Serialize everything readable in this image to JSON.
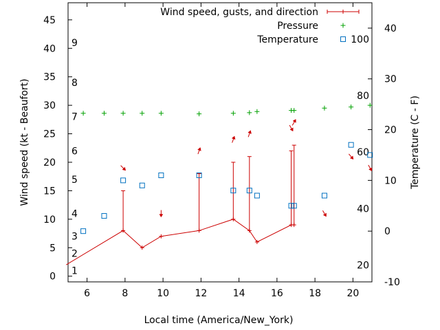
{
  "chart_data": {
    "type": "line",
    "title": "",
    "xlabel": "Local time (America/New_York)",
    "ylabel_left": "Wind speed (kt - Beaufort)",
    "ylabel_right": "Temperature (C - F)",
    "xlim": [
      5,
      21
    ],
    "ylim_left": [
      -1,
      48
    ],
    "ylim_right": [
      -10,
      45
    ],
    "x_ticks": [
      6,
      8,
      10,
      12,
      14,
      16,
      18,
      20
    ],
    "y_left_ticks": [
      0,
      5,
      10,
      15,
      20,
      25,
      30,
      35,
      40,
      45
    ],
    "y_right_ticks": [
      -10,
      0,
      10,
      20,
      30,
      40
    ],
    "beaufort": [
      {
        "label": "1",
        "y": 1
      },
      {
        "label": "2",
        "y": 4
      },
      {
        "label": "3",
        "y": 7
      },
      {
        "label": "4",
        "y": 11
      },
      {
        "label": "5",
        "y": 17
      },
      {
        "label": "6",
        "y": 22
      },
      {
        "label": "7",
        "y": 28
      },
      {
        "label": "8",
        "y": 34
      },
      {
        "label": "9",
        "y": 41
      }
    ],
    "fahrenheit": [
      {
        "label": "20",
        "temp": -6.7
      },
      {
        "label": "40",
        "temp": 4.4
      },
      {
        "label": "60",
        "temp": 15.6
      },
      {
        "label": "80",
        "temp": 26.7
      },
      {
        "label": "100",
        "temp": 37.8
      }
    ],
    "legend": [
      "Wind speed, gusts, and direction",
      "Pressure",
      "Temperature"
    ],
    "legend_position": "top-right",
    "wind": {
      "color": "#cc0000",
      "points": [
        {
          "x": 4.9,
          "speed": 2,
          "gust": null
        },
        {
          "x": 7.9,
          "speed": 8,
          "gust": 15
        },
        {
          "x": 8.9,
          "speed": 5,
          "gust": null
        },
        {
          "x": 9.9,
          "speed": 7,
          "gust": null
        },
        {
          "x": 11.9,
          "speed": 8,
          "gust": 18
        },
        {
          "x": 13.7,
          "speed": 10,
          "gust": 20
        },
        {
          "x": 14.55,
          "speed": 8,
          "gust": 21
        },
        {
          "x": 14.95,
          "speed": 6,
          "gust": null
        },
        {
          "x": 16.75,
          "speed": 9,
          "gust": 22
        },
        {
          "x": 16.9,
          "speed": 9,
          "gust": 23
        }
      ]
    },
    "wind_direction_arrows": [
      {
        "x": 7.9,
        "y": 19,
        "dir": 315
      },
      {
        "x": 9.9,
        "y": 11,
        "dir": 0
      },
      {
        "x": 11.9,
        "y": 22,
        "dir": 200
      },
      {
        "x": 13.7,
        "y": 24,
        "dir": 200
      },
      {
        "x": 14.55,
        "y": 25,
        "dir": 200
      },
      {
        "x": 16.75,
        "y": 26,
        "dir": 330
      },
      {
        "x": 16.9,
        "y": 27,
        "dir": 210
      },
      {
        "x": 18.5,
        "y": 11,
        "dir": 330
      },
      {
        "x": 19.9,
        "y": 21,
        "dir": 320
      },
      {
        "x": 20.9,
        "y": 19,
        "dir": 330
      }
    ],
    "pressure": {
      "color": "#00a000",
      "points": [
        {
          "x": 5.8,
          "y": 28.6
        },
        {
          "x": 6.9,
          "y": 28.6
        },
        {
          "x": 7.9,
          "y": 28.6
        },
        {
          "x": 8.9,
          "y": 28.6
        },
        {
          "x": 9.9,
          "y": 28.6
        },
        {
          "x": 11.9,
          "y": 28.5
        },
        {
          "x": 13.7,
          "y": 28.6
        },
        {
          "x": 14.55,
          "y": 28.7
        },
        {
          "x": 14.95,
          "y": 28.9
        },
        {
          "x": 16.75,
          "y": 29.1
        },
        {
          "x": 16.9,
          "y": 29.1
        },
        {
          "x": 18.5,
          "y": 29.5
        },
        {
          "x": 19.9,
          "y": 29.7
        },
        {
          "x": 20.9,
          "y": 30.0
        }
      ]
    },
    "temperature": {
      "color": "#0070c0",
      "points": [
        {
          "x": 5.8,
          "y": 0
        },
        {
          "x": 6.9,
          "y": 3
        },
        {
          "x": 7.9,
          "y": 10
        },
        {
          "x": 8.9,
          "y": 9
        },
        {
          "x": 9.9,
          "y": 11
        },
        {
          "x": 11.9,
          "y": 11
        },
        {
          "x": 13.7,
          "y": 8
        },
        {
          "x": 14.55,
          "y": 8
        },
        {
          "x": 14.95,
          "y": 7
        },
        {
          "x": 16.75,
          "y": 5
        },
        {
          "x": 16.9,
          "y": 5
        },
        {
          "x": 18.5,
          "y": 7
        },
        {
          "x": 19.9,
          "y": 17
        },
        {
          "x": 20.9,
          "y": 15
        }
      ]
    }
  }
}
